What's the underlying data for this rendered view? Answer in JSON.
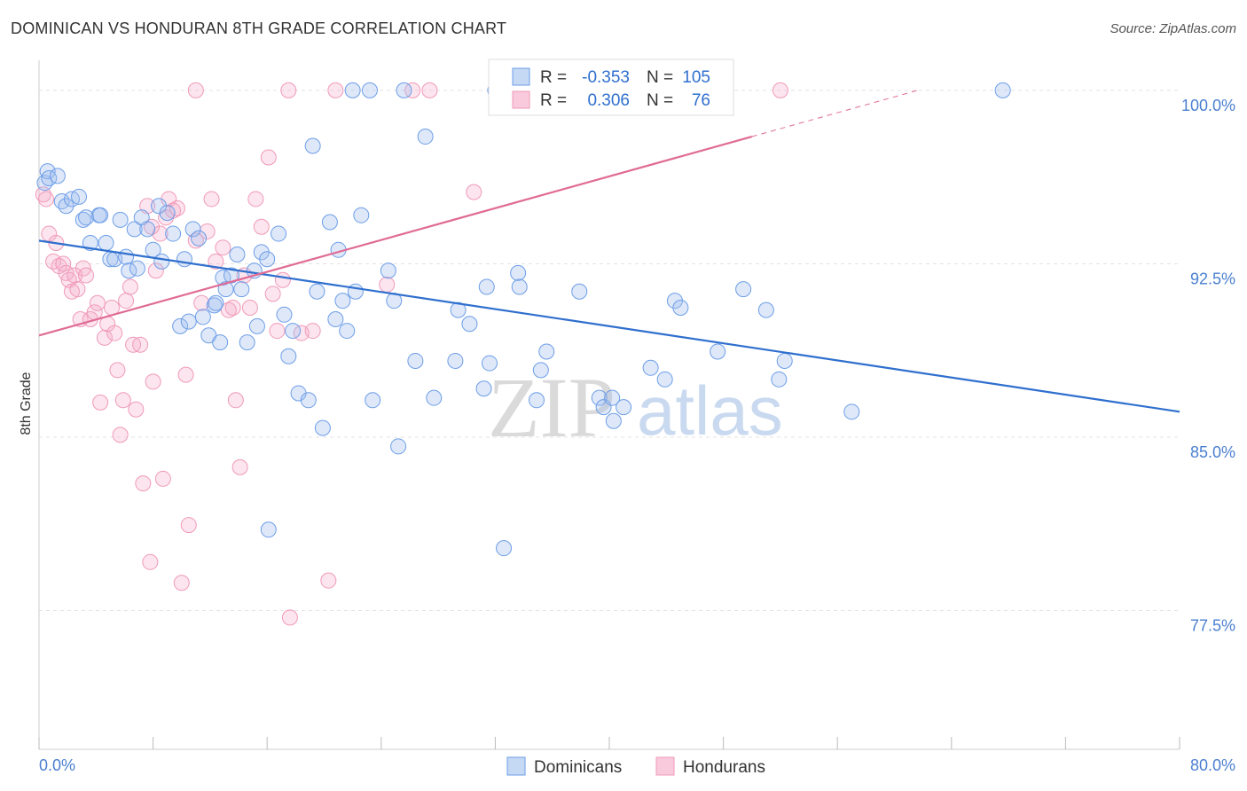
{
  "title": "DOMINICAN VS HONDURAN 8TH GRADE CORRELATION CHART",
  "source": "Source: ZipAtlas.com",
  "watermark": {
    "zip": "ZIP",
    "atlas": "atlas"
  },
  "chart_data": {
    "type": "scatter",
    "xlabel": "",
    "ylabel": "8th Grade",
    "xlim": [
      0,
      80
    ],
    "ylim": [
      71.5,
      101.3
    ],
    "x_tick_labels": [
      "0.0%",
      "80.0%"
    ],
    "y_ticks": [
      77.5,
      85.0,
      92.5,
      100.0
    ],
    "y_tick_labels": [
      "77.5%",
      "85.0%",
      "92.5%",
      "100.0%"
    ],
    "grid": true,
    "legend_position": "top-center",
    "colors": {
      "dominicans": "#6d9ee8",
      "hondurans": "#f09ab8",
      "dominicans_line": "#2f6fce",
      "hondurans_line": "#e06b94"
    },
    "stats_legend": {
      "r_label": "R =",
      "n_label": "N =",
      "rows": [
        {
          "name": "Dominicans",
          "r": "-0.353",
          "n": "105"
        },
        {
          "name": "Hondurans",
          "r": "0.306",
          "n": "76"
        }
      ]
    },
    "series": [
      {
        "name": "Dominicans",
        "trend": {
          "x": [
            0,
            80
          ],
          "y": [
            93.5,
            86.1
          ]
        },
        "points": [
          [
            0.4,
            96.0
          ],
          [
            0.6,
            96.5
          ],
          [
            0.7,
            96.2
          ],
          [
            1.3,
            96.3
          ],
          [
            1.6,
            95.2
          ],
          [
            1.9,
            95.0
          ],
          [
            2.3,
            95.3
          ],
          [
            2.8,
            95.4
          ],
          [
            3.1,
            94.4
          ],
          [
            3.3,
            94.5
          ],
          [
            3.6,
            93.4
          ],
          [
            4.2,
            94.6
          ],
          [
            4.3,
            94.6
          ],
          [
            4.7,
            93.4
          ],
          [
            5.0,
            92.7
          ],
          [
            5.3,
            92.7
          ],
          [
            5.7,
            94.4
          ],
          [
            6.1,
            92.8
          ],
          [
            6.3,
            92.2
          ],
          [
            6.7,
            94.0
          ],
          [
            6.9,
            92.3
          ],
          [
            7.2,
            94.5
          ],
          [
            7.6,
            94.0
          ],
          [
            8.0,
            93.1
          ],
          [
            8.4,
            95.0
          ],
          [
            8.6,
            92.6
          ],
          [
            9.0,
            94.7
          ],
          [
            9.4,
            93.8
          ],
          [
            9.9,
            89.8
          ],
          [
            10.2,
            92.7
          ],
          [
            10.5,
            90.0
          ],
          [
            10.8,
            94.0
          ],
          [
            11.2,
            93.6
          ],
          [
            11.5,
            90.2
          ],
          [
            11.9,
            89.4
          ],
          [
            12.3,
            90.7
          ],
          [
            12.7,
            89.1
          ],
          [
            12.9,
            91.9
          ],
          [
            13.1,
            91.4
          ],
          [
            13.5,
            92.0
          ],
          [
            13.9,
            92.9
          ],
          [
            14.2,
            91.4
          ],
          [
            14.6,
            89.1
          ],
          [
            15.1,
            92.2
          ],
          [
            15.3,
            89.8
          ],
          [
            15.6,
            93.0
          ],
          [
            16.0,
            92.7
          ],
          [
            16.8,
            93.8
          ],
          [
            17.2,
            90.3
          ],
          [
            17.5,
            88.5
          ],
          [
            17.8,
            89.6
          ],
          [
            18.2,
            86.9
          ],
          [
            18.9,
            86.6
          ],
          [
            19.2,
            97.6
          ],
          [
            19.5,
            91.3
          ],
          [
            19.9,
            85.4
          ],
          [
            20.4,
            94.3
          ],
          [
            20.8,
            90.1
          ],
          [
            21.0,
            93.1
          ],
          [
            21.3,
            90.9
          ],
          [
            21.6,
            89.6
          ],
          [
            22.0,
            100.0
          ],
          [
            22.2,
            91.3
          ],
          [
            22.6,
            94.6
          ],
          [
            23.2,
            100.0
          ],
          [
            23.4,
            86.6
          ],
          [
            24.5,
            92.2
          ],
          [
            24.9,
            90.9
          ],
          [
            25.2,
            84.6
          ],
          [
            25.6,
            100.0
          ],
          [
            26.4,
            88.3
          ],
          [
            27.1,
            98.0
          ],
          [
            27.7,
            86.7
          ],
          [
            29.2,
            88.3
          ],
          [
            29.4,
            90.5
          ],
          [
            30.2,
            89.9
          ],
          [
            31.2,
            87.1
          ],
          [
            31.6,
            88.2
          ],
          [
            31.4,
            91.5
          ],
          [
            32.0,
            100.0
          ],
          [
            32.6,
            80.2
          ],
          [
            33.6,
            92.1
          ],
          [
            33.7,
            91.5
          ],
          [
            34.9,
            86.6
          ],
          [
            35.2,
            87.9
          ],
          [
            35.6,
            88.7
          ],
          [
            37.9,
            91.3
          ],
          [
            39.3,
            86.7
          ],
          [
            39.6,
            86.3
          ],
          [
            40.2,
            86.7
          ],
          [
            40.3,
            85.7
          ],
          [
            41.0,
            86.3
          ],
          [
            42.9,
            88.0
          ],
          [
            43.9,
            87.5
          ],
          [
            44.6,
            90.9
          ],
          [
            45.0,
            90.6
          ],
          [
            47.6,
            88.7
          ],
          [
            49.4,
            91.4
          ],
          [
            51.0,
            90.5
          ],
          [
            51.9,
            87.5
          ],
          [
            52.3,
            88.3
          ],
          [
            57.0,
            86.1
          ],
          [
            67.6,
            100.0
          ],
          [
            16.1,
            81.0
          ],
          [
            12.4,
            90.8
          ]
        ]
      },
      {
        "name": "Hondurans",
        "trend": {
          "x": [
            0,
            50
          ],
          "y": [
            89.4,
            98.0
          ]
        },
        "points": [
          [
            0.3,
            95.5
          ],
          [
            0.5,
            95.3
          ],
          [
            0.7,
            93.8
          ],
          [
            1.0,
            92.6
          ],
          [
            1.2,
            93.4
          ],
          [
            1.4,
            92.4
          ],
          [
            1.7,
            92.5
          ],
          [
            1.9,
            92.1
          ],
          [
            2.1,
            91.8
          ],
          [
            2.3,
            91.3
          ],
          [
            2.5,
            92.0
          ],
          [
            2.7,
            91.4
          ],
          [
            2.9,
            90.1
          ],
          [
            3.1,
            92.3
          ],
          [
            3.3,
            92.0
          ],
          [
            3.6,
            90.1
          ],
          [
            3.9,
            90.4
          ],
          [
            4.1,
            90.8
          ],
          [
            4.3,
            86.5
          ],
          [
            4.6,
            89.3
          ],
          [
            4.8,
            89.9
          ],
          [
            5.1,
            90.6
          ],
          [
            5.3,
            89.5
          ],
          [
            5.5,
            87.9
          ],
          [
            5.7,
            85.1
          ],
          [
            5.9,
            86.6
          ],
          [
            6.1,
            90.9
          ],
          [
            6.4,
            91.5
          ],
          [
            6.6,
            89.0
          ],
          [
            6.8,
            86.2
          ],
          [
            7.1,
            89.0
          ],
          [
            7.3,
            83.0
          ],
          [
            7.6,
            95.0
          ],
          [
            7.8,
            79.6
          ],
          [
            7.9,
            94.1
          ],
          [
            8.0,
            87.4
          ],
          [
            8.2,
            92.2
          ],
          [
            8.5,
            93.8
          ],
          [
            8.7,
            83.2
          ],
          [
            8.9,
            94.5
          ],
          [
            9.1,
            95.3
          ],
          [
            9.4,
            94.8
          ],
          [
            9.7,
            94.9
          ],
          [
            10.0,
            78.7
          ],
          [
            10.3,
            87.7
          ],
          [
            10.5,
            81.2
          ],
          [
            11.0,
            93.5
          ],
          [
            11.4,
            90.8
          ],
          [
            11.8,
            93.9
          ],
          [
            12.1,
            95.3
          ],
          [
            12.4,
            92.6
          ],
          [
            12.9,
            93.2
          ],
          [
            13.3,
            90.5
          ],
          [
            13.6,
            90.6
          ],
          [
            13.8,
            86.6
          ],
          [
            14.1,
            83.7
          ],
          [
            14.4,
            92.0
          ],
          [
            14.8,
            90.6
          ],
          [
            15.2,
            95.3
          ],
          [
            15.6,
            94.1
          ],
          [
            16.1,
            97.1
          ],
          [
            16.4,
            91.2
          ],
          [
            16.7,
            89.6
          ],
          [
            17.1,
            91.8
          ],
          [
            17.6,
            77.2
          ],
          [
            18.4,
            89.5
          ],
          [
            19.2,
            89.6
          ],
          [
            20.3,
            78.8
          ],
          [
            24.4,
            91.6
          ],
          [
            26.2,
            100.0
          ],
          [
            27.4,
            100.0
          ],
          [
            30.5,
            95.6
          ],
          [
            52.0,
            100.0
          ],
          [
            11.0,
            100.0
          ],
          [
            17.5,
            100.0
          ],
          [
            20.8,
            100.0
          ]
        ]
      }
    ]
  }
}
